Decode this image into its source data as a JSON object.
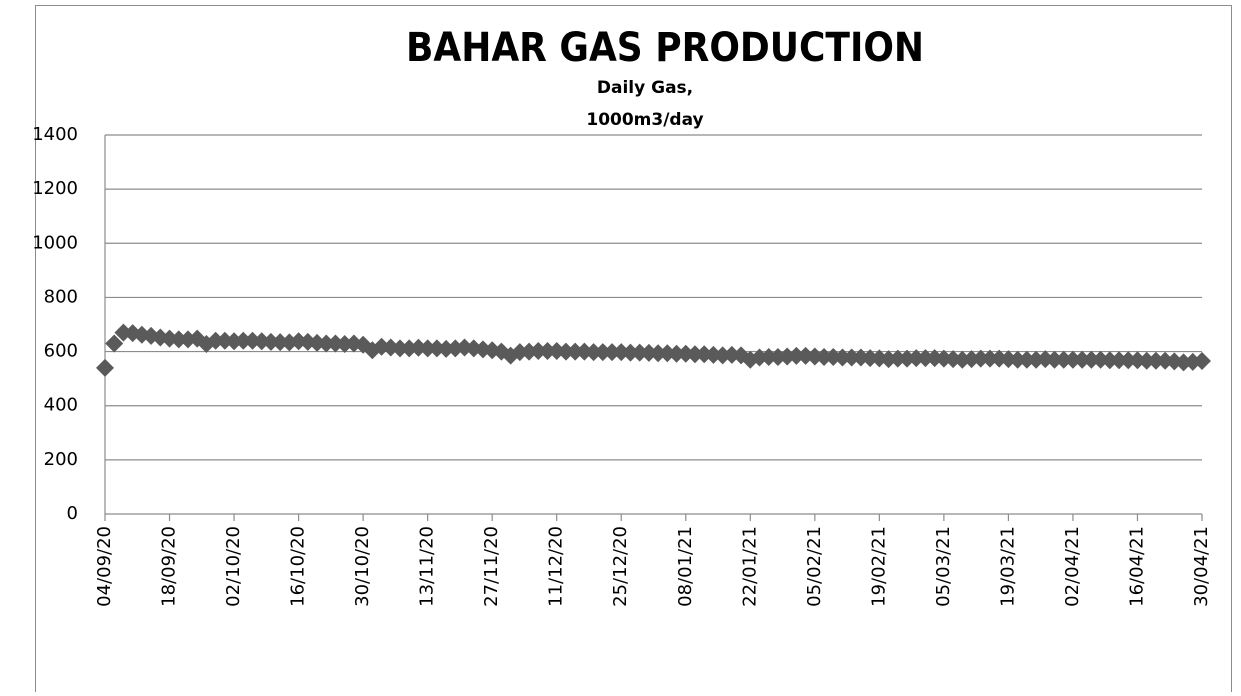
{
  "chart_data": {
    "type": "scatter",
    "title": "BAHAR GAS PRODUCTION",
    "subtitle": [
      "Daily  Gas,",
      "1000m3/day"
    ],
    "x": [
      "04/09/20",
      "06/09/20",
      "08/09/20",
      "10/09/20",
      "12/09/20",
      "14/09/20",
      "16/09/20",
      "18/09/20",
      "20/09/20",
      "22/09/20",
      "24/09/20",
      "26/09/20",
      "28/09/20",
      "30/09/20",
      "02/10/20",
      "04/10/20",
      "06/10/20",
      "08/10/20",
      "10/10/20",
      "12/10/20",
      "14/10/20",
      "16/10/20",
      "18/10/20",
      "20/10/20",
      "22/10/20",
      "24/10/20",
      "26/10/20",
      "28/10/20",
      "30/10/20",
      "01/11/20",
      "03/11/20",
      "05/11/20",
      "07/11/20",
      "09/11/20",
      "11/11/20",
      "13/11/20",
      "15/11/20",
      "17/11/20",
      "19/11/20",
      "21/11/20",
      "23/11/20",
      "25/11/20",
      "27/11/20",
      "29/11/20",
      "01/12/20",
      "03/12/20",
      "05/12/20",
      "07/12/20",
      "09/12/20",
      "11/12/20",
      "13/12/20",
      "15/12/20",
      "17/12/20",
      "19/12/20",
      "21/12/20",
      "23/12/20",
      "25/12/20",
      "27/12/20",
      "29/12/20",
      "31/12/20",
      "02/01/21",
      "04/01/21",
      "06/01/21",
      "08/01/21",
      "10/01/21",
      "12/01/21",
      "14/01/21",
      "16/01/21",
      "18/01/21",
      "20/01/21",
      "22/01/21",
      "24/01/21",
      "26/01/21",
      "28/01/21",
      "30/01/21",
      "01/02/21",
      "03/02/21",
      "05/02/21",
      "07/02/21",
      "09/02/21",
      "11/02/21",
      "13/02/21",
      "15/02/21",
      "17/02/21",
      "19/02/21",
      "21/02/21",
      "23/02/21",
      "25/02/21",
      "27/02/21",
      "01/03/21",
      "03/03/21",
      "05/03/21",
      "07/03/21",
      "09/03/21",
      "11/03/21",
      "13/03/21",
      "15/03/21",
      "17/03/21",
      "19/03/21",
      "21/03/21",
      "23/03/21",
      "25/03/21",
      "27/03/21",
      "29/03/21",
      "31/03/21",
      "02/04/21",
      "04/04/21",
      "06/04/21",
      "08/04/21",
      "10/04/21",
      "12/04/21",
      "14/04/21",
      "16/04/21",
      "18/04/21",
      "20/04/21",
      "22/04/21",
      "24/04/21",
      "26/04/21",
      "28/04/21",
      "30/04/21"
    ],
    "series": [
      {
        "color": "#5a5a5a",
        "values": [
          540,
          630,
          670,
          668,
          662,
          658,
          652,
          648,
          645,
          645,
          648,
          628,
          640,
          640,
          638,
          640,
          640,
          638,
          636,
          635,
          634,
          638,
          636,
          632,
          630,
          630,
          628,
          630,
          625,
          605,
          618,
          615,
          612,
          612,
          614,
          612,
          612,
          610,
          612,
          615,
          612,
          608,
          605,
          600,
          585,
          598,
          600,
          602,
          602,
          602,
          600,
          600,
          600,
          598,
          598,
          598,
          598,
          596,
          596,
          595,
          594,
          594,
          592,
          592,
          590,
          590,
          588,
          586,
          588,
          586,
          570,
          578,
          580,
          580,
          582,
          584,
          584,
          582,
          580,
          580,
          578,
          578,
          578,
          576,
          575,
          572,
          574,
          574,
          576,
          576,
          576,
          574,
          572,
          570,
          572,
          574,
          574,
          574,
          572,
          570,
          570,
          570,
          572,
          570,
          570,
          570,
          570,
          570,
          570,
          568,
          568,
          568,
          568,
          566,
          566,
          566,
          564,
          560,
          562,
          565
        ]
      }
    ],
    "xlim": [
      "04/09/20",
      "30/04/21"
    ],
    "xticks": [
      "04/09/20",
      "18/09/20",
      "02/10/20",
      "16/10/20",
      "30/10/20",
      "13/11/20",
      "27/11/20",
      "11/12/20",
      "25/12/20",
      "08/01/21",
      "22/01/21",
      "05/02/21",
      "19/02/21",
      "05/03/21",
      "19/03/21",
      "02/04/21",
      "16/04/21",
      "30/04/21"
    ],
    "ylim": [
      0,
      1400
    ],
    "yticks": [
      0,
      200,
      400,
      600,
      800,
      1000,
      1200,
      1400
    ],
    "grid": true
  }
}
